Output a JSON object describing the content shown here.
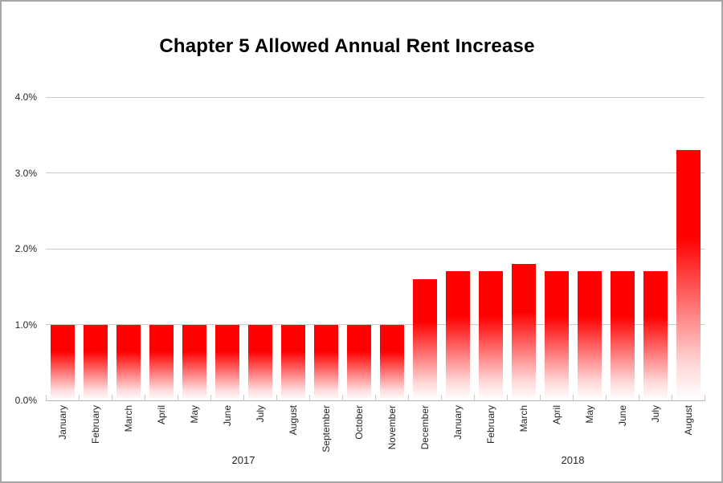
{
  "chart_data": {
    "type": "bar",
    "title": "Chapter 5 Allowed Annual Rent Increase",
    "xlabel": "",
    "ylabel": "",
    "unit": "percent",
    "ylim": [
      0,
      4
    ],
    "grid": true,
    "legend_position": "none",
    "yticks": [
      {
        "value": 0,
        "label": "0.0%"
      },
      {
        "value": 1,
        "label": "1.0%"
      },
      {
        "value": 2,
        "label": "2.0%"
      },
      {
        "value": 3,
        "label": "3.0%"
      },
      {
        "value": 4,
        "label": "4.0%"
      }
    ],
    "year_groups": [
      {
        "label": "2017",
        "count": 12
      },
      {
        "label": "2018",
        "count": 8
      }
    ],
    "bars": [
      {
        "year": "2017",
        "month": "January",
        "value": 1.0
      },
      {
        "year": "2017",
        "month": "February",
        "value": 1.0
      },
      {
        "year": "2017",
        "month": "March",
        "value": 1.0
      },
      {
        "year": "2017",
        "month": "April",
        "value": 1.0
      },
      {
        "year": "2017",
        "month": "May",
        "value": 1.0
      },
      {
        "year": "2017",
        "month": "June",
        "value": 1.0
      },
      {
        "year": "2017",
        "month": "July",
        "value": 1.0
      },
      {
        "year": "2017",
        "month": "August",
        "value": 1.0
      },
      {
        "year": "2017",
        "month": "September",
        "value": 1.0
      },
      {
        "year": "2017",
        "month": "October",
        "value": 1.0
      },
      {
        "year": "2017",
        "month": "November",
        "value": 1.0
      },
      {
        "year": "2017",
        "month": "December",
        "value": 1.6
      },
      {
        "year": "2018",
        "month": "January",
        "value": 1.7
      },
      {
        "year": "2018",
        "month": "February",
        "value": 1.7
      },
      {
        "year": "2018",
        "month": "March",
        "value": 1.8
      },
      {
        "year": "2018",
        "month": "April",
        "value": 1.7
      },
      {
        "year": "2018",
        "month": "May",
        "value": 1.7
      },
      {
        "year": "2018",
        "month": "June",
        "value": 1.7
      },
      {
        "year": "2018",
        "month": "July",
        "value": 1.7
      },
      {
        "year": "2018",
        "month": "August",
        "value": 3.3
      }
    ],
    "colors": {
      "bar_top": "#ff0000",
      "bar_fade_bottom": "#ffffff",
      "gridline": "#c9c9c9",
      "axis_line": "#b0b0b0",
      "tick_text": "#262626",
      "title_text": "#000000",
      "frame_border": "#a6a6a6",
      "background": "#ffffff"
    }
  }
}
